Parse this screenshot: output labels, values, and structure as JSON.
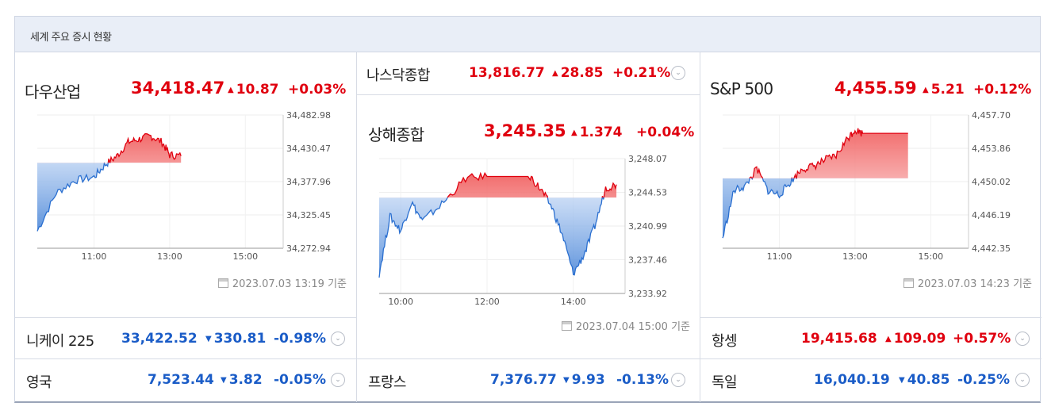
{
  "header": {
    "title": "세계 주요 증시 현황"
  },
  "dow": {
    "name": "다우산업",
    "value": "34,418.47",
    "change": "10.87",
    "pct": "+0.03%",
    "direction": "up",
    "yticks": [
      "34,482.98",
      "34,430.47",
      "34,377.96",
      "34,325.45",
      "34,272.94"
    ],
    "xticks": [
      "11:00",
      "13:00",
      "15:00"
    ],
    "date": "2023.07.03 13:19 기준"
  },
  "nasdaq": {
    "name": "나스닥종합",
    "value": "13,816.77",
    "change": "28.85",
    "pct": "+0.21%",
    "direction": "up"
  },
  "shanghai": {
    "name": "상해종합",
    "value": "3,245.35",
    "change": "1.374",
    "pct": "+0.04%",
    "direction": "up",
    "yticks": [
      "3,248.07",
      "3,244.53",
      "3,240.99",
      "3,237.46",
      "3,233.92"
    ],
    "xticks": [
      "10:00",
      "12:00",
      "14:00"
    ],
    "date": "2023.07.04 15:00 기준"
  },
  "sp500": {
    "name": "S&P 500",
    "value": "4,455.59",
    "change": "5.21",
    "pct": "+0.12%",
    "direction": "up",
    "yticks": [
      "4,457.70",
      "4,453.86",
      "4,450.02",
      "4,446.19",
      "4,442.35"
    ],
    "xticks": [
      "11:00",
      "13:00",
      "15:00"
    ],
    "date": "2023.07.03 14:23 기준"
  },
  "nikkei": {
    "name": "니케이 225",
    "value": "33,422.52",
    "change": "330.81",
    "pct": "-0.98%",
    "direction": "down"
  },
  "hangseng": {
    "name": "항셍",
    "value": "19,415.68",
    "change": "109.09",
    "pct": "+0.57%",
    "direction": "up"
  },
  "uk": {
    "name": "영국",
    "value": "7,523.44",
    "change": "3.82",
    "pct": "-0.05%",
    "direction": "down"
  },
  "france": {
    "name": "프랑스",
    "value": "7,376.77",
    "change": "9.93",
    "pct": "-0.13%",
    "direction": "down"
  },
  "germany": {
    "name": "독일",
    "value": "16,040.19",
    "change": "40.85",
    "pct": "-0.25%",
    "direction": "down"
  },
  "symbols": {
    "up_triangle": "▲",
    "down_triangle": "▼",
    "expand": "⌄"
  },
  "colors": {
    "up": "#e0000f",
    "down": "#1a5cc7",
    "header_bg": "#e9eef7"
  },
  "chart_data": [
    {
      "type": "area",
      "name": "다우산업",
      "yticks": [
        34482.98,
        34430.47,
        34377.96,
        34325.45,
        34272.94
      ],
      "ylim": [
        34272.94,
        34482.98
      ],
      "xticks": [
        "11:00",
        "13:00",
        "15:00"
      ],
      "baseline": 34407.6,
      "x": [
        9.5,
        10.0,
        10.5,
        11.0,
        11.3,
        11.6,
        11.9,
        12.2,
        12.5,
        12.8,
        13.0,
        13.3
      ],
      "values": [
        34300,
        34360,
        34380,
        34385,
        34405,
        34418,
        34440,
        34445,
        34450,
        34440,
        34420,
        34418.47
      ]
    },
    {
      "type": "area",
      "name": "상해종합",
      "yticks": [
        3248.07,
        3244.53,
        3240.99,
        3237.46,
        3233.92
      ],
      "ylim": [
        3233.92,
        3248.07
      ],
      "xticks": [
        "10:00",
        "12:00",
        "14:00"
      ],
      "baseline": 3243.98,
      "x": [
        9.5,
        9.75,
        10.0,
        10.25,
        10.5,
        11.0,
        11.5,
        12.0,
        12.5,
        13.0,
        13.25,
        13.5,
        13.75,
        14.0,
        14.25,
        14.5,
        14.75,
        15.0
      ],
      "values": [
        3236.0,
        3242.0,
        3240.5,
        3243.5,
        3241.5,
        3243.5,
        3246.0,
        3246.2,
        3246.2,
        3246.2,
        3244.8,
        3243.0,
        3240.0,
        3236.0,
        3238.0,
        3241.0,
        3245.0,
        3245.35
      ]
    },
    {
      "type": "area",
      "name": "S&P 500",
      "yticks": [
        4457.7,
        4453.86,
        4450.02,
        4446.19,
        4442.35
      ],
      "ylim": [
        4442.35,
        4457.7
      ],
      "xticks": [
        "11:00",
        "13:00",
        "15:00"
      ],
      "baseline": 4450.4,
      "x": [
        9.5,
        9.8,
        10.1,
        10.4,
        10.7,
        11.0,
        11.3,
        11.6,
        11.9,
        12.2,
        12.5,
        12.8,
        13.0,
        13.2,
        13.6,
        14.0,
        14.4
      ],
      "values": [
        4443.5,
        4449.0,
        4449.5,
        4451.5,
        4449.0,
        4448.5,
        4450.0,
        4451.5,
        4451.8,
        4452.5,
        4453.0,
        4455.0,
        4456.0,
        4455.59,
        4455.59,
        4455.59,
        4455.59
      ]
    }
  ]
}
